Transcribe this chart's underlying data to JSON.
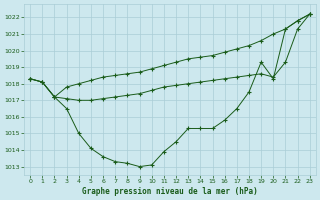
{
  "title": "Graphe pression niveau de la mer (hPa)",
  "background_color": "#cde8ee",
  "grid_color": "#aacdd6",
  "line_color": "#1a5c1a",
  "xlim": [
    -0.5,
    23.5
  ],
  "ylim": [
    1012.5,
    1022.8
  ],
  "yticks": [
    1013,
    1014,
    1015,
    1016,
    1017,
    1018,
    1019,
    1020,
    1021,
    1022
  ],
  "xticks": [
    0,
    1,
    2,
    3,
    4,
    5,
    6,
    7,
    8,
    9,
    10,
    11,
    12,
    13,
    14,
    15,
    16,
    17,
    18,
    19,
    20,
    21,
    22,
    23
  ],
  "series": [
    {
      "x": [
        0,
        1,
        2,
        3,
        4,
        5,
        6,
        7,
        8,
        9,
        10,
        11,
        12,
        13,
        14,
        15,
        16,
        17,
        18,
        19,
        20,
        21,
        22,
        23
      ],
      "y": [
        1018.3,
        1018.1,
        1017.2,
        1017.8,
        1018.0,
        1018.2,
        1018.4,
        1018.5,
        1018.6,
        1018.7,
        1018.9,
        1019.1,
        1019.3,
        1019.5,
        1019.6,
        1019.7,
        1019.9,
        1020.1,
        1020.3,
        1020.6,
        1021.0,
        1021.3,
        1021.8,
        1022.2
      ]
    },
    {
      "x": [
        0,
        1,
        2,
        3,
        4,
        5,
        6,
        7,
        8,
        9,
        10,
        11,
        12,
        13,
        14,
        15,
        16,
        17,
        18,
        19,
        20,
        21,
        22,
        23
      ],
      "y": [
        1018.3,
        1018.1,
        1017.2,
        1017.1,
        1017.0,
        1017.0,
        1017.1,
        1017.2,
        1017.3,
        1017.4,
        1017.6,
        1017.8,
        1017.9,
        1018.0,
        1018.1,
        1018.2,
        1018.3,
        1018.4,
        1018.5,
        1018.6,
        1018.4,
        1019.3,
        1021.3,
        1022.2
      ]
    },
    {
      "x": [
        0,
        1,
        2,
        3,
        4,
        5,
        6,
        7,
        8,
        9,
        10,
        11,
        12,
        13,
        14,
        15,
        16,
        17,
        18,
        19,
        20,
        21,
        22,
        23
      ],
      "y": [
        1018.3,
        1018.1,
        1017.2,
        1016.5,
        1015.0,
        1014.1,
        1013.6,
        1013.3,
        1013.2,
        1013.0,
        1013.1,
        1013.9,
        1014.5,
        1015.3,
        1015.3,
        1015.3,
        1015.8,
        1016.5,
        1017.5,
        1019.3,
        1018.3,
        1021.3,
        1021.8,
        1022.2
      ]
    }
  ]
}
